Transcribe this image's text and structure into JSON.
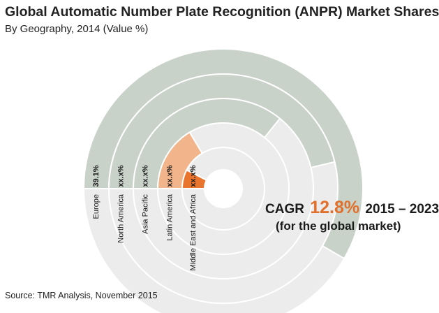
{
  "title": "Global Automatic Number Plate Recognition (ANPR) Market Shares",
  "subtitle": "By Geography, 2014 (Value %)",
  "cagr": {
    "prefix": "CAGR",
    "value": "12.8%",
    "period": "2015 – 2023",
    "note": "(for the global market)"
  },
  "source": "Source:  TMR Analysis, November 2015",
  "colors": {
    "track": "#ececec",
    "track_stroke": "#ffffff",
    "green": "#c8d2c9",
    "light_orange": "#f2b48a",
    "dark_orange": "#e8742e",
    "accent": "#e0702c"
  },
  "chart_data": {
    "type": "radial bar",
    "title": "Global Automatic Number Plate Recognition (ANPR) Market Shares",
    "subtitle": "By Geography, 2014 (Value %)",
    "categories": [
      "Europe",
      "North America",
      "Asia Pacific",
      "Latin America",
      "Middle East and Africa"
    ],
    "value_labels": [
      "39.1%",
      "xx.x%",
      "xx.x%",
      "xx.x%",
      "xx.x%"
    ],
    "values": [
      39.1,
      31,
      24,
      11,
      5
    ],
    "bar_colors": [
      "#c8d2c9",
      "#c8d2c9",
      "#c8d2c9",
      "#f2b48a",
      "#e8742e"
    ]
  }
}
